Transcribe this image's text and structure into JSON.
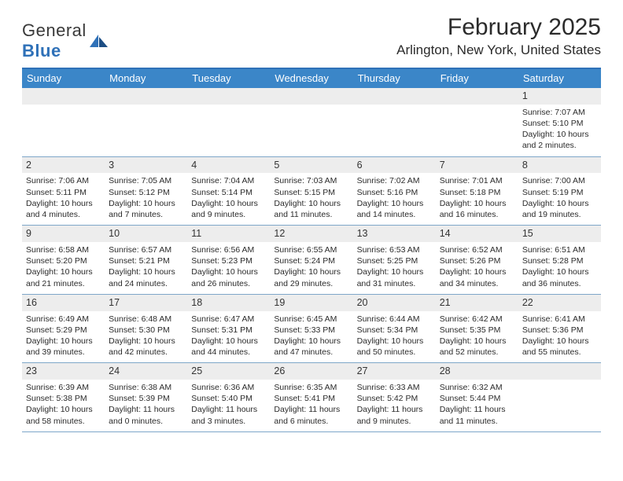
{
  "brand": {
    "name1": "General",
    "name2": "Blue"
  },
  "title": "February 2025",
  "location": "Arlington, New York, United States",
  "colors": {
    "header_bg": "#3b86c8",
    "border_top": "#2f71b8",
    "row_border": "#7ea7c9",
    "daynum_bg": "#ededed",
    "text": "#2b2b2b",
    "white": "#ffffff"
  },
  "dayNames": [
    "Sunday",
    "Monday",
    "Tuesday",
    "Wednesday",
    "Thursday",
    "Friday",
    "Saturday"
  ],
  "weeks": [
    [
      null,
      null,
      null,
      null,
      null,
      null,
      {
        "n": "1",
        "sunrise": "7:07 AM",
        "sunset": "5:10 PM",
        "dl1": "Daylight: 10 hours",
        "dl2": "and 2 minutes."
      }
    ],
    [
      {
        "n": "2",
        "sunrise": "7:06 AM",
        "sunset": "5:11 PM",
        "dl1": "Daylight: 10 hours",
        "dl2": "and 4 minutes."
      },
      {
        "n": "3",
        "sunrise": "7:05 AM",
        "sunset": "5:12 PM",
        "dl1": "Daylight: 10 hours",
        "dl2": "and 7 minutes."
      },
      {
        "n": "4",
        "sunrise": "7:04 AM",
        "sunset": "5:14 PM",
        "dl1": "Daylight: 10 hours",
        "dl2": "and 9 minutes."
      },
      {
        "n": "5",
        "sunrise": "7:03 AM",
        "sunset": "5:15 PM",
        "dl1": "Daylight: 10 hours",
        "dl2": "and 11 minutes."
      },
      {
        "n": "6",
        "sunrise": "7:02 AM",
        "sunset": "5:16 PM",
        "dl1": "Daylight: 10 hours",
        "dl2": "and 14 minutes."
      },
      {
        "n": "7",
        "sunrise": "7:01 AM",
        "sunset": "5:18 PM",
        "dl1": "Daylight: 10 hours",
        "dl2": "and 16 minutes."
      },
      {
        "n": "8",
        "sunrise": "7:00 AM",
        "sunset": "5:19 PM",
        "dl1": "Daylight: 10 hours",
        "dl2": "and 19 minutes."
      }
    ],
    [
      {
        "n": "9",
        "sunrise": "6:58 AM",
        "sunset": "5:20 PM",
        "dl1": "Daylight: 10 hours",
        "dl2": "and 21 minutes."
      },
      {
        "n": "10",
        "sunrise": "6:57 AM",
        "sunset": "5:21 PM",
        "dl1": "Daylight: 10 hours",
        "dl2": "and 24 minutes."
      },
      {
        "n": "11",
        "sunrise": "6:56 AM",
        "sunset": "5:23 PM",
        "dl1": "Daylight: 10 hours",
        "dl2": "and 26 minutes."
      },
      {
        "n": "12",
        "sunrise": "6:55 AM",
        "sunset": "5:24 PM",
        "dl1": "Daylight: 10 hours",
        "dl2": "and 29 minutes."
      },
      {
        "n": "13",
        "sunrise": "6:53 AM",
        "sunset": "5:25 PM",
        "dl1": "Daylight: 10 hours",
        "dl2": "and 31 minutes."
      },
      {
        "n": "14",
        "sunrise": "6:52 AM",
        "sunset": "5:26 PM",
        "dl1": "Daylight: 10 hours",
        "dl2": "and 34 minutes."
      },
      {
        "n": "15",
        "sunrise": "6:51 AM",
        "sunset": "5:28 PM",
        "dl1": "Daylight: 10 hours",
        "dl2": "and 36 minutes."
      }
    ],
    [
      {
        "n": "16",
        "sunrise": "6:49 AM",
        "sunset": "5:29 PM",
        "dl1": "Daylight: 10 hours",
        "dl2": "and 39 minutes."
      },
      {
        "n": "17",
        "sunrise": "6:48 AM",
        "sunset": "5:30 PM",
        "dl1": "Daylight: 10 hours",
        "dl2": "and 42 minutes."
      },
      {
        "n": "18",
        "sunrise": "6:47 AM",
        "sunset": "5:31 PM",
        "dl1": "Daylight: 10 hours",
        "dl2": "and 44 minutes."
      },
      {
        "n": "19",
        "sunrise": "6:45 AM",
        "sunset": "5:33 PM",
        "dl1": "Daylight: 10 hours",
        "dl2": "and 47 minutes."
      },
      {
        "n": "20",
        "sunrise": "6:44 AM",
        "sunset": "5:34 PM",
        "dl1": "Daylight: 10 hours",
        "dl2": "and 50 minutes."
      },
      {
        "n": "21",
        "sunrise": "6:42 AM",
        "sunset": "5:35 PM",
        "dl1": "Daylight: 10 hours",
        "dl2": "and 52 minutes."
      },
      {
        "n": "22",
        "sunrise": "6:41 AM",
        "sunset": "5:36 PM",
        "dl1": "Daylight: 10 hours",
        "dl2": "and 55 minutes."
      }
    ],
    [
      {
        "n": "23",
        "sunrise": "6:39 AM",
        "sunset": "5:38 PM",
        "dl1": "Daylight: 10 hours",
        "dl2": "and 58 minutes."
      },
      {
        "n": "24",
        "sunrise": "6:38 AM",
        "sunset": "5:39 PM",
        "dl1": "Daylight: 11 hours",
        "dl2": "and 0 minutes."
      },
      {
        "n": "25",
        "sunrise": "6:36 AM",
        "sunset": "5:40 PM",
        "dl1": "Daylight: 11 hours",
        "dl2": "and 3 minutes."
      },
      {
        "n": "26",
        "sunrise": "6:35 AM",
        "sunset": "5:41 PM",
        "dl1": "Daylight: 11 hours",
        "dl2": "and 6 minutes."
      },
      {
        "n": "27",
        "sunrise": "6:33 AM",
        "sunset": "5:42 PM",
        "dl1": "Daylight: 11 hours",
        "dl2": "and 9 minutes."
      },
      {
        "n": "28",
        "sunrise": "6:32 AM",
        "sunset": "5:44 PM",
        "dl1": "Daylight: 11 hours",
        "dl2": "and 11 minutes."
      },
      null
    ]
  ],
  "labels": {
    "sunrise": "Sunrise: ",
    "sunset": "Sunset: "
  }
}
